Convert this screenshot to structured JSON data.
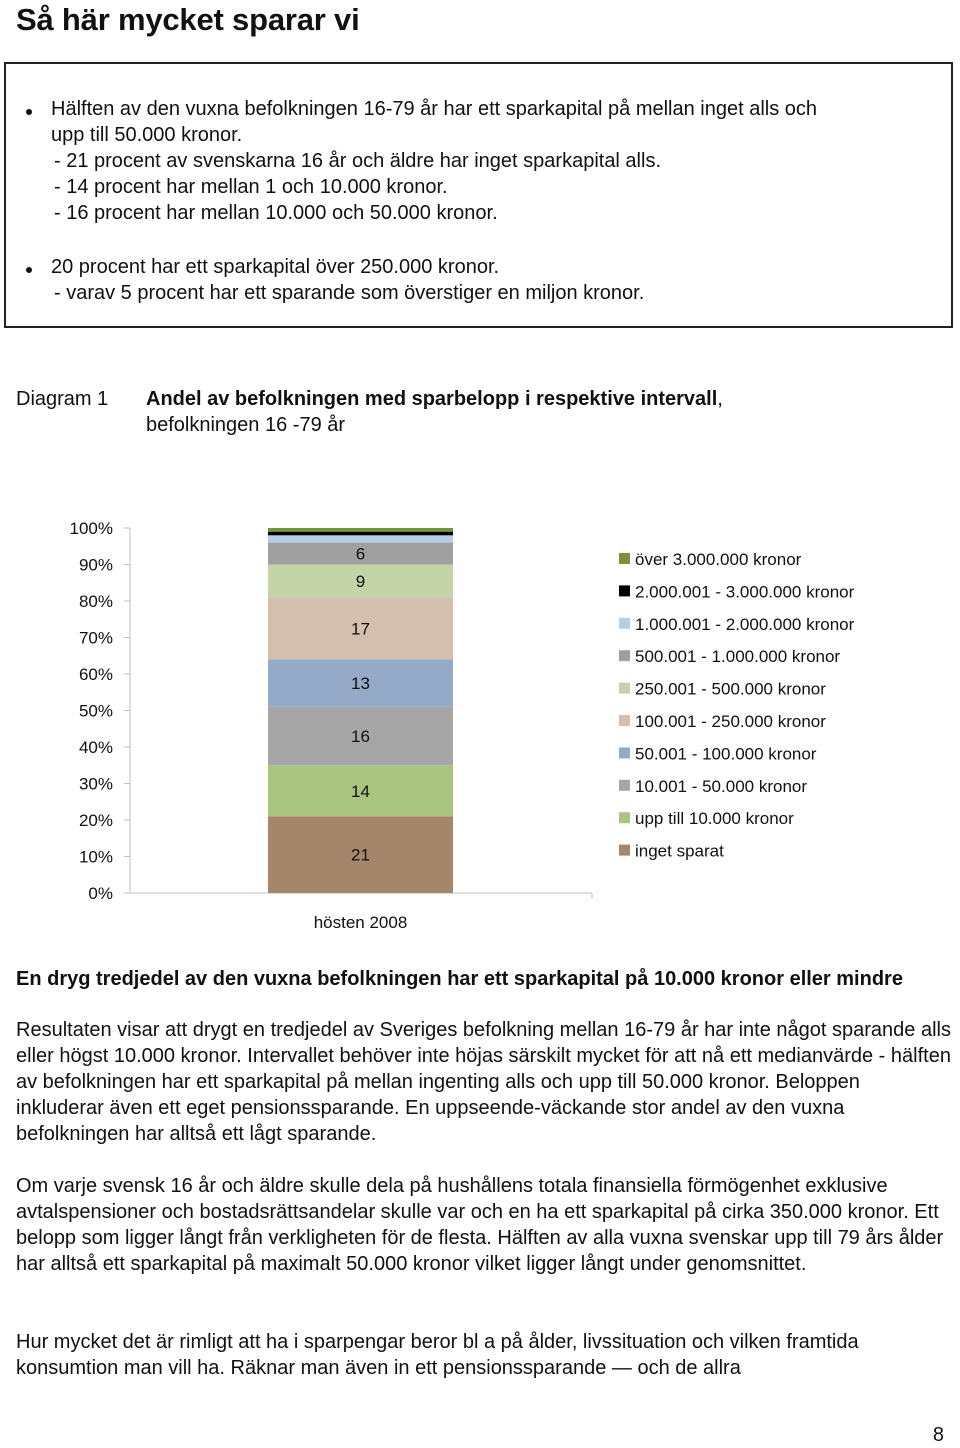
{
  "page_title": "Så här mycket sparar vi",
  "summary": {
    "b1_line1": "Hälften av den vuxna befolkningen 16-79 år har ett sparkapital på mellan inget alls och",
    "b1_line2": "upp till 50.000 kronor.",
    "b1_sub1": "-  21 procent av svenskarna 16 år och äldre har inget sparkapital alls.",
    "b1_sub2": "-  14 procent har mellan 1 och 10.000 kronor.",
    "b1_sub3": "-  16 procent har mellan 10.000 och 50.000 kronor.",
    "b2_line1": "20 procent har ett sparkapital över 250.000 kronor.",
    "b2_sub1": "-  varav 5 procent har ett sparande som överstiger en miljon kronor."
  },
  "diagram": {
    "caption": "Diagram 1",
    "title_bold": "Andel av befolkningen med sparbelopp i respektive intervall",
    "title_rest": ",",
    "title_line2": "befolkningen 16 -79 år"
  },
  "chart_data": {
    "type": "bar",
    "stacked": true,
    "normalized": true,
    "categories": [
      "hösten 2008"
    ],
    "ylim": [
      0,
      100
    ],
    "yticks": [
      "0%",
      "10%",
      "20%",
      "30%",
      "40%",
      "50%",
      "60%",
      "70%",
      "80%",
      "90%",
      "100%"
    ],
    "legend_position": "right",
    "series": [
      {
        "name": "inget sparat",
        "values": [
          21
        ],
        "label": "21",
        "color": "#a6866a"
      },
      {
        "name": "upp till 10.000 kronor",
        "values": [
          14
        ],
        "label": "14",
        "color": "#a9c47f"
      },
      {
        "name": "10.001 - 50.000 kronor",
        "values": [
          16
        ],
        "label": "16",
        "color": "#a6a6a6"
      },
      {
        "name": "50.001 - 100.000 kronor",
        "values": [
          13
        ],
        "label": "13",
        "color": "#94aac8"
      },
      {
        "name": "100.001 - 250.000 kronor",
        "values": [
          17
        ],
        "label": "17",
        "color": "#d4bfae"
      },
      {
        "name": "250.001 - 500.000 kronor",
        "values": [
          9
        ],
        "label": "9",
        "color": "#c4d4a6"
      },
      {
        "name": "500.001 - 1.000.000 kronor",
        "values": [
          6
        ],
        "label": "6",
        "color": "#a0a0a0"
      },
      {
        "name": "1.000.001 - 2.000.000 kronor",
        "values": [
          2
        ],
        "label": "",
        "color": "#b8cce4"
      },
      {
        "name": "2.000.001 - 3.000.000 kronor",
        "values": [
          1
        ],
        "label": "",
        "color": "#000000"
      },
      {
        "name": "över 3.000.000 kronor",
        "values": [
          1
        ],
        "label": "",
        "color": "#77933c"
      }
    ]
  },
  "body": {
    "heading": "En dryg tredjedel av den vuxna befolkningen har ett sparkapital på 10.000 kronor eller mindre",
    "p1": "Resultaten visar att drygt en tredjedel av Sveriges befolkning mellan 16-79 år har inte något sparande alls eller högst 10.000 kronor. Intervallet behöver inte höjas särskilt mycket för att nå ett medianvärde - hälften av befolkningen har ett sparkapital på mellan ingenting alls och upp till 50.000 kronor. Beloppen inkluderar även ett eget pensionssparande. En uppseende-väckande stor andel av den vuxna befolkningen har alltså ett lågt sparande.",
    "p2": "Om varje svensk 16 år och äldre skulle dela på hushållens totala finansiella förmögenhet exklusive avtalspensioner och bostadsrättsandelar skulle var och en ha ett sparkapital på cirka 350.000 kronor. Ett belopp som ligger långt från verkligheten för de flesta. Hälften av alla vuxna svenskar upp till 79 års ålder har alltså ett sparkapital på maximalt 50.000 kronor vilket ligger långt under genomsnittet.",
    "p3": "Hur mycket det är rimligt att ha i sparpengar beror bl a på ålder, livssituation och vilken framtida konsumtion man vill ha. Räknar man även in ett pensionssparande — och de allra"
  },
  "page_number": "8"
}
